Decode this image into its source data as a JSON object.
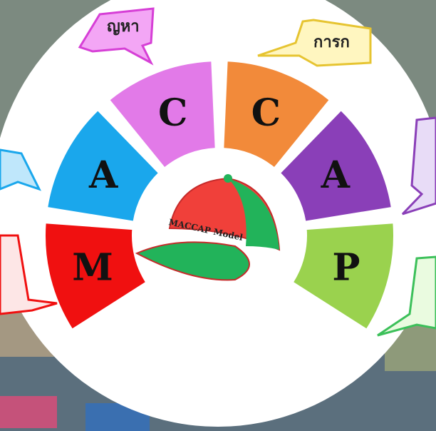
{
  "segments": [
    {
      "label": "M",
      "color": "#f01010"
    },
    {
      "label": "A",
      "color": "#1aa7ec"
    },
    {
      "label": "C",
      "color": "#e27ae8"
    },
    {
      "label": "C",
      "color": "#f28a3a"
    },
    {
      "label": "A",
      "color": "#8a3fb8"
    },
    {
      "label": "P",
      "color": "#9ad24e"
    }
  ],
  "cap": {
    "label": "MACCAP Model"
  },
  "callouts": [
    {
      "text": "ญหา"
    },
    {
      "text": "การก"
    }
  ]
}
